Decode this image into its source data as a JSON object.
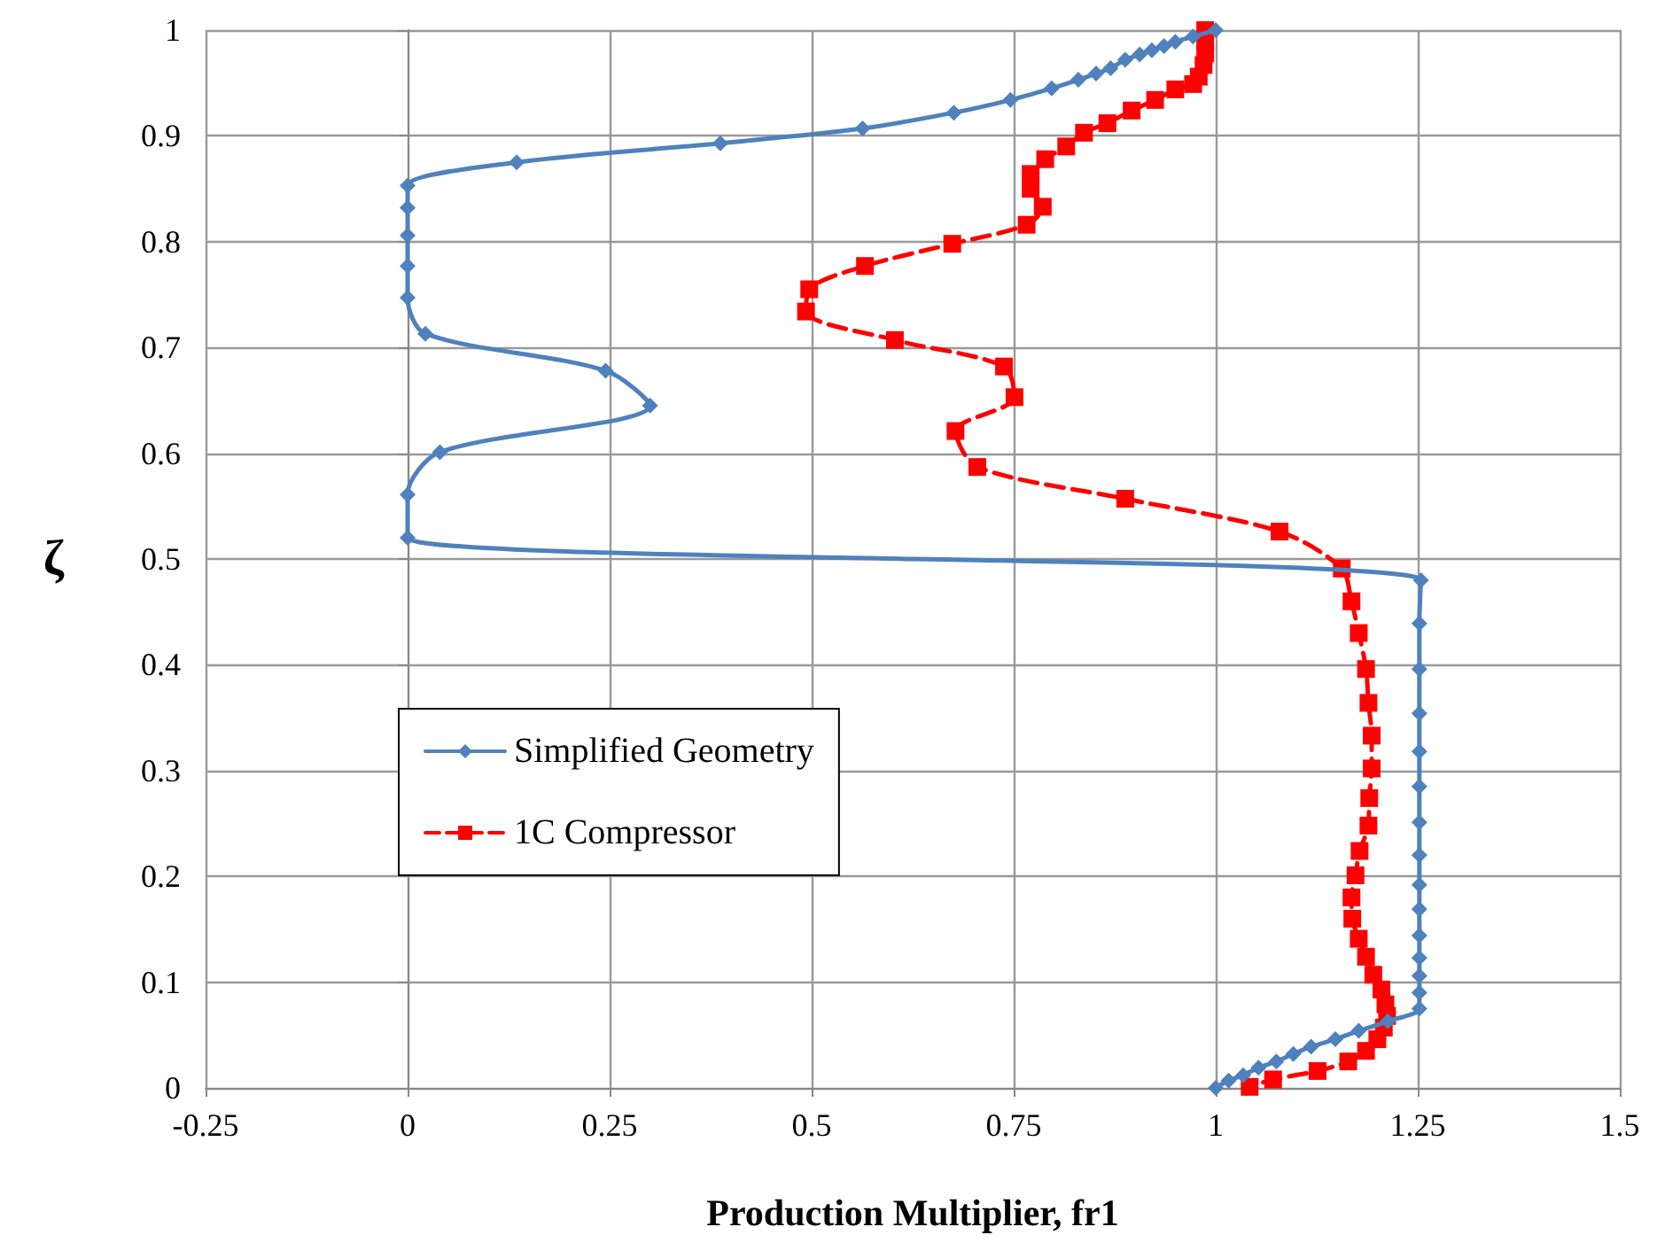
{
  "chart_data": {
    "type": "line",
    "xlabel": "Production Multiplier, fr1",
    "ylabel": "ζ",
    "xlim": [
      -0.25,
      1.5
    ],
    "xticks": [
      -0.25,
      0,
      0.25,
      0.5,
      0.75,
      1,
      1.25,
      1.5
    ],
    "ylim": [
      0,
      1
    ],
    "yticks": [
      0,
      0.1,
      0.2,
      0.3,
      0.4,
      0.5,
      0.6,
      0.7,
      0.8,
      0.9,
      1
    ],
    "grid": true,
    "legend": "left",
    "series": [
      {
        "name": "Simplified Geometry",
        "color": "#4f81bd",
        "marker": "diamond",
        "line_style": "solid",
        "x": [
          1.0,
          0.972,
          0.95,
          0.936,
          0.921,
          0.906,
          0.888,
          0.87,
          0.852,
          0.83,
          0.797,
          0.746,
          0.676,
          0.563,
          0.387,
          0.135,
          0,
          0,
          0,
          0,
          0,
          0.022,
          0.245,
          0.3,
          0.04,
          0,
          0,
          1.254,
          1.252,
          1.252,
          1.252,
          1.252,
          1.252,
          1.252,
          1.252,
          1.252,
          1.252,
          1.252,
          1.252,
          1.252,
          1.252,
          1.252,
          1.213,
          1.177,
          1.148,
          1.118,
          1.096,
          1.075,
          1.053,
          1.034,
          1.016,
          1.0
        ],
        "values": [
          1.0,
          0.994,
          0.989,
          0.985,
          0.981,
          0.977,
          0.972,
          0.964,
          0.959,
          0.953,
          0.945,
          0.934,
          0.922,
          0.907,
          0.893,
          0.875,
          0.853,
          0.832,
          0.806,
          0.777,
          0.747,
          0.713,
          0.678,
          0.645,
          0.601,
          0.561,
          0.52,
          0.48,
          0.439,
          0.396,
          0.354,
          0.318,
          0.285,
          0.251,
          0.22,
          0.192,
          0.169,
          0.144,
          0.123,
          0.106,
          0.09,
          0.075,
          0.063,
          0.054,
          0.046,
          0.039,
          0.032,
          0.025,
          0.019,
          0.012,
          0.007,
          0.0
        ]
      },
      {
        "name": "1C Compressor",
        "color": "#ff0000",
        "marker": "square",
        "line_style": "dashed",
        "x": [
          0.987,
          0.987,
          0.987,
          0.985,
          0.979,
          0.972,
          0.95,
          0.925,
          0.896,
          0.866,
          0.837,
          0.815,
          0.789,
          0.771,
          0.771,
          0.786,
          0.766,
          0.674,
          0.566,
          0.497,
          0.493,
          0.603,
          0.738,
          0.751,
          0.678,
          0.705,
          0.888,
          1.079,
          1.156,
          1.168,
          1.177,
          1.186,
          1.189,
          1.193,
          1.193,
          1.19,
          1.189,
          1.178,
          1.173,
          1.168,
          1.169,
          1.177,
          1.186,
          1.195,
          1.205,
          1.21,
          1.212,
          1.208,
          1.2,
          1.186,
          1.164,
          1.126,
          1.071,
          1.042
        ],
        "values": [
          1.0,
          0.989,
          0.978,
          0.967,
          0.956,
          0.949,
          0.944,
          0.934,
          0.924,
          0.912,
          0.903,
          0.89,
          0.878,
          0.864,
          0.85,
          0.833,
          0.816,
          0.798,
          0.777,
          0.755,
          0.734,
          0.707,
          0.682,
          0.653,
          0.621,
          0.587,
          0.557,
          0.526,
          0.491,
          0.46,
          0.43,
          0.396,
          0.364,
          0.333,
          0.302,
          0.274,
          0.248,
          0.224,
          0.201,
          0.18,
          0.16,
          0.141,
          0.124,
          0.107,
          0.093,
          0.079,
          0.068,
          0.057,
          0.046,
          0.035,
          0.025,
          0.016,
          0.008,
          0.001
        ]
      }
    ]
  }
}
